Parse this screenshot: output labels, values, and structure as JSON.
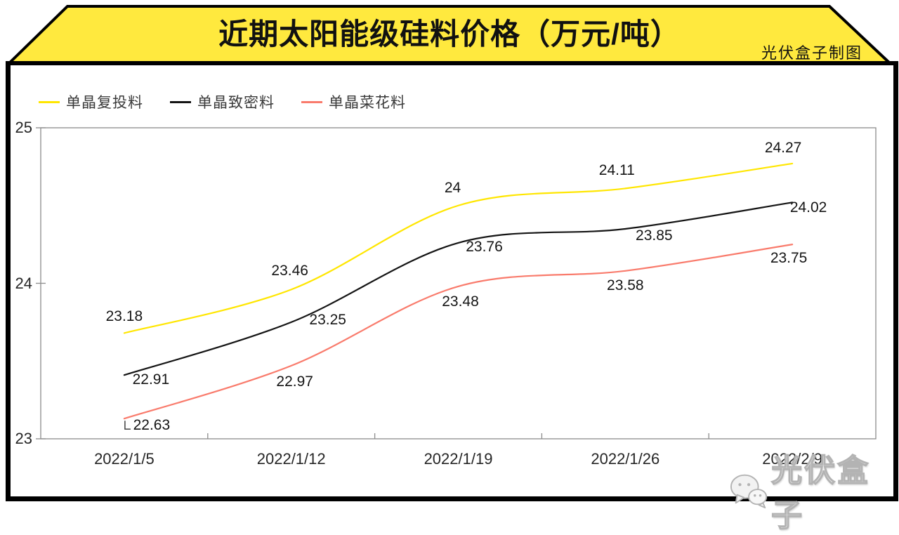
{
  "banner": {
    "title": "近期太阳能级硅料价格（万元/吨）",
    "credit": "光伏盒子制图",
    "bg_color": "#FFE93E",
    "border_color": "#000000"
  },
  "watermark": {
    "text": "光伏盒子",
    "icon": "wechat-icon",
    "color": "#b3b3b3"
  },
  "chart_data": {
    "type": "line",
    "title": "近期太阳能级硅料价格（万元/吨）",
    "categories": [
      "2022/1/5",
      "2022/1/12",
      "2022/1/19",
      "2022/1/26",
      "2022/2/9"
    ],
    "series": [
      {
        "name": "单晶复投料",
        "color": "#FFE600",
        "values": [
          23.18,
          23.46,
          24,
          24.11,
          24.27
        ]
      },
      {
        "name": "单晶致密料",
        "color": "#141414",
        "values": [
          22.91,
          23.25,
          23.76,
          23.85,
          24.02
        ]
      },
      {
        "name": "单晶菜花料",
        "color": "#F97B6C",
        "values": [
          22.63,
          22.97,
          23.48,
          23.58,
          23.75
        ]
      }
    ],
    "y_ticks": [
      25,
      24,
      23
    ],
    "ylim": [
      23,
      25
    ],
    "grid": false,
    "smooth": true,
    "legend_position": "top-left",
    "plot_border_color": "#8c8c8c"
  }
}
